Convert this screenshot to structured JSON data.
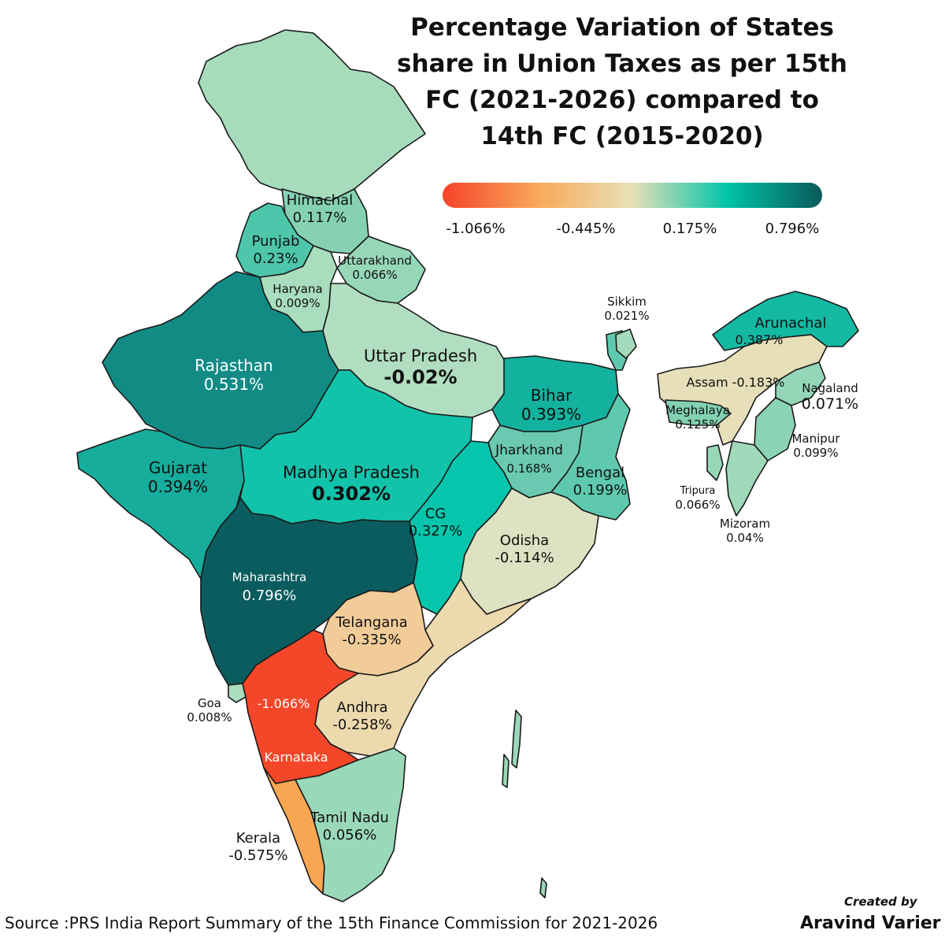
{
  "title": "Percentage Variation of States share in Union Taxes as per 15th FC (2021-2026) compared to 14th FC (2015-2020)",
  "legend": {
    "ticks": [
      "-1.066%",
      "-0.445%",
      "0.175%",
      "0.796%"
    ],
    "colors": [
      "#f5432a",
      "#f9a85a",
      "#e8e0b8",
      "#00c4a8",
      "#0a5a5a"
    ]
  },
  "states": {
    "jk": {
      "value": 0,
      "color": "#a6dcbc"
    },
    "himachal": {
      "name": "Himachal",
      "label": "0.117%",
      "value": 0.117,
      "color": "#86d1b4"
    },
    "punjab": {
      "name": "Punjab",
      "label": "0.23%",
      "value": 0.23,
      "color": "#4dc6ab"
    },
    "uttarakhand": {
      "name": "Uttarakhand",
      "label": "0.066%",
      "value": 0.066,
      "color": "#96d7b8"
    },
    "haryana": {
      "name": "Haryana",
      "label": "0.009%",
      "value": 0.009,
      "color": "#a9ddbd"
    },
    "rajasthan": {
      "name": "Rajasthan",
      "label": "0.531%",
      "value": 0.531,
      "color": "#128b85"
    },
    "up": {
      "name": "Uttar Pradesh",
      "label": "-0.02%",
      "value": -0.02,
      "color": "#b1dec0"
    },
    "bihar": {
      "name": "Bihar",
      "label": "0.393%",
      "value": 0.393,
      "color": "#13b29e"
    },
    "gujarat": {
      "name": "Gujarat",
      "label": "0.394%",
      "value": 0.394,
      "color": "#16ad9c"
    },
    "mp": {
      "name": "Madhya Pradesh",
      "label": "0.302%",
      "value": 0.302,
      "color": "#11c3aa"
    },
    "jharkhand": {
      "name": "Jharkhand",
      "label": "0.168%",
      "value": 0.168,
      "color": "#6ac9b0"
    },
    "bengal": {
      "name": "Bengal",
      "label": "0.199%",
      "value": 0.199,
      "color": "#5ec9ae"
    },
    "cg": {
      "name": "CG",
      "label": "0.327%",
      "value": 0.327,
      "color": "#05c5ac"
    },
    "odisha": {
      "name": "Odisha",
      "label": "-0.114%",
      "value": -0.114,
      "color": "#dde2c2"
    },
    "maharashtra": {
      "name": "Maharashtra",
      "label": "0.796%",
      "value": 0.796,
      "color": "#0b5c5e"
    },
    "telangana": {
      "name": "Telangana",
      "label": "-0.335%",
      "value": -0.335,
      "color": "#f1cc98"
    },
    "goa": {
      "name": "Goa",
      "label": "0.008%",
      "value": 0.008,
      "color": "#a9ddbd"
    },
    "karnataka": {
      "name": "Karnataka",
      "label": "-1.066%",
      "value": -1.066,
      "color": "#f4472a"
    },
    "andhra": {
      "name": "Andhra",
      "label": "-0.258%",
      "value": -0.258,
      "color": "#ecd9ae"
    },
    "kerala": {
      "name": "Kerala",
      "label": "-0.575%",
      "value": -0.575,
      "color": "#f9a653"
    },
    "tn": {
      "name": "Tamil Nadu",
      "label": "0.056%",
      "value": 0.056,
      "color": "#9ad8ba"
    },
    "sikkim": {
      "name": "Sikkim",
      "label": "0.021%",
      "value": 0.021,
      "color": "#a3dbbc"
    },
    "arunachal": {
      "name": "Arunachal",
      "label": "0.387%",
      "value": 0.387,
      "color": "#14b9a2"
    },
    "assam": {
      "name": "Assam",
      "label": "-0.183%",
      "value": -0.183,
      "color": "#e6dfb9"
    },
    "nagaland": {
      "name": "Nagaland",
      "label": "0.071%",
      "value": 0.071,
      "color": "#94d6b8"
    },
    "meghalaya": {
      "name": "Meghalaya",
      "label": "0.125%",
      "value": 0.125,
      "color": "#83d1b3"
    },
    "manipur": {
      "name": "Manipur",
      "label": "0.099%",
      "value": 0.099,
      "color": "#8bd3b5"
    },
    "tripura": {
      "name": "Tripura",
      "label": "0.066%",
      "value": 0.066,
      "color": "#96d7b8"
    },
    "mizoram": {
      "name": "Mizoram",
      "label": "0.04%",
      "value": 0.04,
      "color": "#9fd9ba"
    }
  },
  "source": "Source :PRS India Report Summary of the 15th Finance Commission for 2021-2026",
  "credit": {
    "line1": "Created by",
    "line2": "Aravind Varier"
  }
}
